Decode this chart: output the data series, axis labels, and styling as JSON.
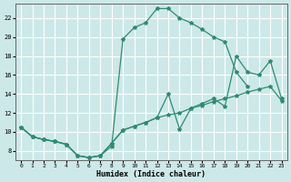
{
  "xlabel": "Humidex (Indice chaleur)",
  "bg_color": "#cde8e8",
  "grid_color": "#ffffff",
  "line_color": "#2e8b72",
  "curve1_x": [
    0,
    1,
    2,
    3,
    4,
    5,
    6,
    7,
    8,
    9,
    10,
    11,
    12,
    13,
    14,
    15,
    16,
    17,
    18,
    19,
    20
  ],
  "curve1_y": [
    10.5,
    9.5,
    9.2,
    9.0,
    8.7,
    7.5,
    7.3,
    7.5,
    8.5,
    19.8,
    21.0,
    21.5,
    23.0,
    23.0,
    22.0,
    21.5,
    20.8,
    20.0,
    19.5,
    16.3,
    14.8
  ],
  "curve2_x": [
    0,
    1,
    2,
    3,
    4,
    5,
    6,
    7,
    8,
    9,
    10,
    11,
    12,
    13,
    14,
    15,
    16,
    17,
    18,
    19,
    20,
    21,
    22,
    23
  ],
  "curve2_y": [
    10.5,
    9.5,
    9.2,
    9.0,
    8.7,
    7.5,
    7.3,
    7.5,
    8.8,
    10.2,
    10.6,
    11.0,
    11.5,
    14.0,
    10.3,
    12.5,
    13.0,
    13.5,
    12.7,
    18.0,
    16.3,
    16.0,
    17.5,
    13.5
  ],
  "curve3_x": [
    0,
    1,
    2,
    3,
    4,
    5,
    6,
    7,
    8,
    9,
    10,
    11,
    12,
    13,
    14,
    15,
    16,
    17,
    18,
    19,
    20,
    21,
    22,
    23
  ],
  "curve3_y": [
    10.5,
    9.5,
    9.2,
    9.0,
    8.7,
    7.5,
    7.3,
    7.5,
    8.8,
    10.2,
    10.6,
    11.0,
    11.5,
    11.8,
    12.0,
    12.5,
    12.8,
    13.2,
    13.5,
    13.8,
    14.2,
    14.5,
    14.8,
    13.3
  ],
  "xlim": [
    -0.5,
    23.5
  ],
  "ylim": [
    7.0,
    23.5
  ],
  "xticks": [
    0,
    1,
    2,
    3,
    4,
    5,
    6,
    7,
    8,
    9,
    10,
    11,
    12,
    13,
    14,
    15,
    16,
    17,
    18,
    19,
    20,
    21,
    22,
    23
  ],
  "yticks": [
    8,
    10,
    12,
    14,
    16,
    18,
    20,
    22
  ]
}
